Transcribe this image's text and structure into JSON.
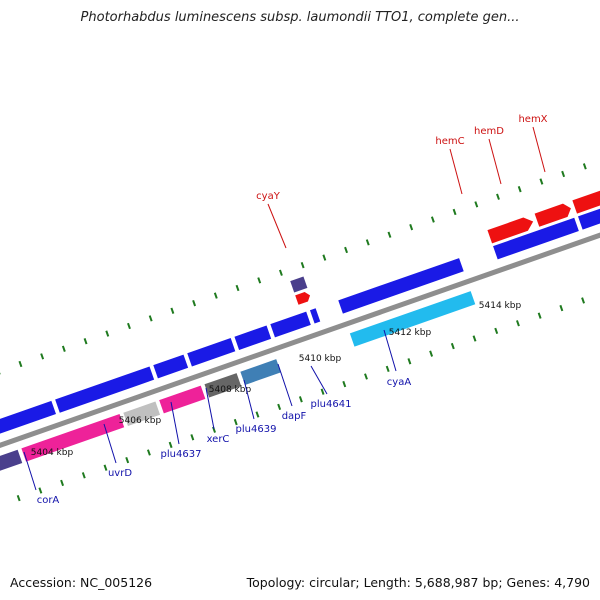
{
  "title": "Photorhabdus luminescens subsp. laumondii TTO1, complete gen...",
  "footer": {
    "accession": "Accession: NC_005126",
    "genome_info": "Topology: circular; Length: 5,688,987 bp; Genes: 4,790"
  },
  "scale_labels": [
    "5404 kbp",
    "5406 kbp",
    "5408 kbp",
    "5410 kbp",
    "5412 kbp",
    "5414 kbp"
  ],
  "colors": {
    "backbone": "#8e8e8e",
    "tick": "#1f7a1f",
    "label_plus": "#cc1111",
    "label_minus": "#1111aa",
    "blue": "#1a1ae6",
    "red": "#ee1111",
    "magenta": "#ee2299",
    "navy": "#4a3f8c",
    "gray": "#666666",
    "lightgray": "#c0c0c0",
    "steel": "#3f7fb5",
    "cyan": "#22bbee"
  },
  "genes": [
    {
      "label": "hemC",
      "strand": "plus",
      "color": "red"
    },
    {
      "label": "hemD",
      "strand": "plus",
      "color": "red"
    },
    {
      "label": "hemX",
      "strand": "plus",
      "color": "red"
    },
    {
      "label": "cyaY",
      "strand": "plus",
      "color": "red"
    },
    {
      "label": "corA",
      "strand": "minus",
      "color": "navy"
    },
    {
      "label": "uvrD",
      "strand": "minus",
      "color": "magenta"
    },
    {
      "label": "plu4637",
      "strand": "minus",
      "color": "lightgray"
    },
    {
      "label": "xerC",
      "strand": "minus",
      "color": "magenta"
    },
    {
      "label": "plu4639",
      "strand": "minus",
      "color": "gray"
    },
    {
      "label": "dapF",
      "strand": "minus",
      "color": "steel"
    },
    {
      "label": "plu4641",
      "strand": "minus",
      "color": "blue"
    },
    {
      "label": "cyaA",
      "strand": "minus",
      "color": "cyan"
    }
  ]
}
